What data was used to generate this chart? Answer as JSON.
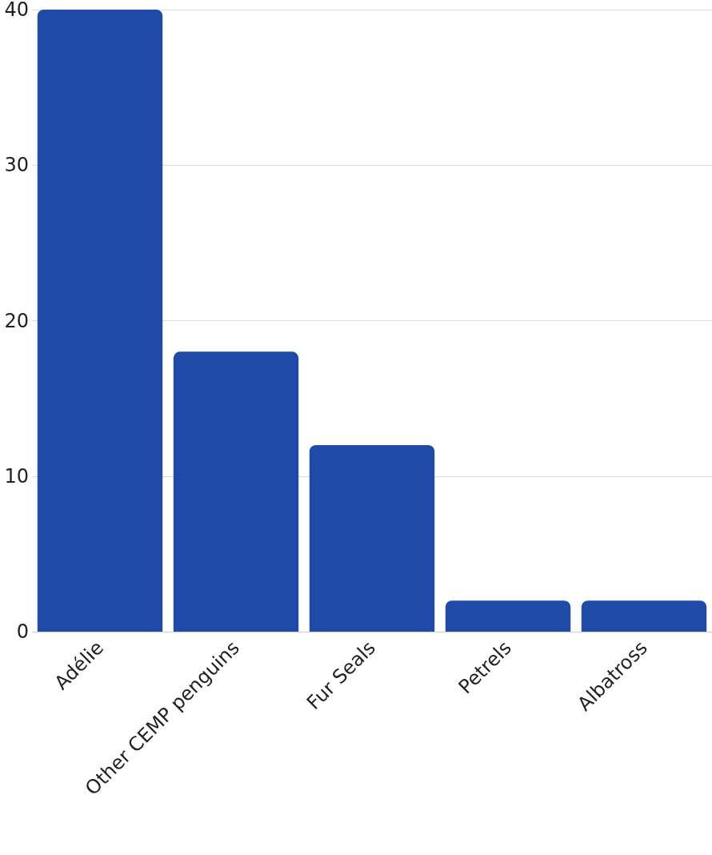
{
  "chart_data": {
    "type": "bar",
    "categories": [
      "Adélie",
      "Other CEMP penguins",
      "Fur Seals",
      "Petrels",
      "Albatross"
    ],
    "values": [
      40,
      18,
      12,
      2,
      2
    ],
    "color": "#1f4aa8",
    "ylim": [
      0,
      40
    ],
    "yticks": [
      0,
      10,
      20,
      30,
      40
    ],
    "grid": "y"
  }
}
